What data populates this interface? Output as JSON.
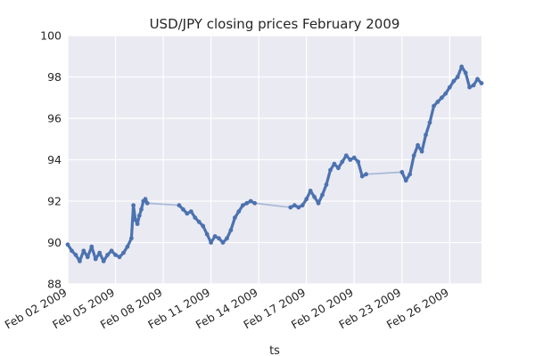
{
  "chart_data": {
    "type": "line",
    "title": "USD/JPY closing prices February 2009",
    "xlabel": "ts",
    "ylabel": "",
    "ylim": [
      88,
      100
    ],
    "yticks": [
      88,
      90,
      92,
      94,
      96,
      98,
      100
    ],
    "xlim": [
      "2009-02-02",
      "2009-02-28"
    ],
    "xticks": [
      "Feb 02 2009",
      "Feb 05 2009",
      "Feb 08 2009",
      "Feb 11 2009",
      "Feb 14 2009",
      "Feb 17 2009",
      "Feb 20 2009",
      "Feb 23 2009",
      "Feb 26 2009"
    ],
    "grid": true,
    "series": [
      {
        "color": "#4c72b0",
        "points": [
          [
            "2009-02-02T00:00",
            89.9
          ],
          [
            "2009-02-02T06:00",
            89.6
          ],
          [
            "2009-02-02T12:00",
            89.4
          ],
          [
            "2009-02-02T18:00",
            89.1
          ],
          [
            "2009-02-03T00:00",
            89.6
          ],
          [
            "2009-02-03T06:00",
            89.3
          ],
          [
            "2009-02-03T12:00",
            89.8
          ],
          [
            "2009-02-03T18:00",
            89.2
          ],
          [
            "2009-02-04T00:00",
            89.5
          ],
          [
            "2009-02-04T06:00",
            89.1
          ],
          [
            "2009-02-04T12:00",
            89.4
          ],
          [
            "2009-02-04T18:00",
            89.6
          ],
          [
            "2009-02-05T00:00",
            89.4
          ],
          [
            "2009-02-05T06:00",
            89.3
          ],
          [
            "2009-02-05T12:00",
            89.5
          ],
          [
            "2009-02-05T18:00",
            89.8
          ],
          [
            "2009-02-06T00:00",
            90.2
          ],
          [
            "2009-02-06T03:00",
            91.8
          ],
          [
            "2009-02-06T06:00",
            91.1
          ],
          [
            "2009-02-06T09:00",
            90.9
          ],
          [
            "2009-02-06T12:00",
            91.3
          ],
          [
            "2009-02-06T15:00",
            91.6
          ],
          [
            "2009-02-06T18:00",
            92.0
          ],
          [
            "2009-02-06T21:00",
            92.1
          ],
          [
            "2009-02-07T00:00",
            91.9
          ],
          [
            "2009-02-09T00:00",
            91.8
          ],
          [
            "2009-02-09T06:00",
            91.6
          ],
          [
            "2009-02-09T12:00",
            91.4
          ],
          [
            "2009-02-09T18:00",
            91.5
          ],
          [
            "2009-02-10T00:00",
            91.2
          ],
          [
            "2009-02-10T06:00",
            91.0
          ],
          [
            "2009-02-10T12:00",
            90.8
          ],
          [
            "2009-02-10T18:00",
            90.4
          ],
          [
            "2009-02-11T00:00",
            90.0
          ],
          [
            "2009-02-11T06:00",
            90.3
          ],
          [
            "2009-02-11T12:00",
            90.2
          ],
          [
            "2009-02-11T18:00",
            90.0
          ],
          [
            "2009-02-12T00:00",
            90.2
          ],
          [
            "2009-02-12T06:00",
            90.6
          ],
          [
            "2009-02-12T12:00",
            91.2
          ],
          [
            "2009-02-12T18:00",
            91.5
          ],
          [
            "2009-02-13T00:00",
            91.8
          ],
          [
            "2009-02-13T06:00",
            91.9
          ],
          [
            "2009-02-13T12:00",
            92.0
          ],
          [
            "2009-02-13T18:00",
            91.9
          ],
          [
            "2009-02-16T00:00",
            91.7
          ],
          [
            "2009-02-16T06:00",
            91.8
          ],
          [
            "2009-02-16T12:00",
            91.7
          ],
          [
            "2009-02-16T18:00",
            91.8
          ],
          [
            "2009-02-17T00:00",
            92.1
          ],
          [
            "2009-02-17T06:00",
            92.5
          ],
          [
            "2009-02-17T12:00",
            92.2
          ],
          [
            "2009-02-17T18:00",
            91.9
          ],
          [
            "2009-02-18T00:00",
            92.3
          ],
          [
            "2009-02-18T06:00",
            92.8
          ],
          [
            "2009-02-18T12:00",
            93.5
          ],
          [
            "2009-02-18T18:00",
            93.8
          ],
          [
            "2009-02-19T00:00",
            93.6
          ],
          [
            "2009-02-19T06:00",
            93.9
          ],
          [
            "2009-02-19T12:00",
            94.2
          ],
          [
            "2009-02-19T18:00",
            94.0
          ],
          [
            "2009-02-20T00:00",
            94.1
          ],
          [
            "2009-02-20T06:00",
            93.9
          ],
          [
            "2009-02-20T12:00",
            93.2
          ],
          [
            "2009-02-20T18:00",
            93.3
          ],
          [
            "2009-02-23T00:00",
            93.4
          ],
          [
            "2009-02-23T06:00",
            93.0
          ],
          [
            "2009-02-23T12:00",
            93.3
          ],
          [
            "2009-02-23T18:00",
            94.2
          ],
          [
            "2009-02-24T00:00",
            94.7
          ],
          [
            "2009-02-24T06:00",
            94.4
          ],
          [
            "2009-02-24T12:00",
            95.2
          ],
          [
            "2009-02-24T18:00",
            95.8
          ],
          [
            "2009-02-25T00:00",
            96.6
          ],
          [
            "2009-02-25T06:00",
            96.8
          ],
          [
            "2009-02-25T12:00",
            97.0
          ],
          [
            "2009-02-25T18:00",
            97.2
          ],
          [
            "2009-02-26T00:00",
            97.5
          ],
          [
            "2009-02-26T06:00",
            97.8
          ],
          [
            "2009-02-26T12:00",
            98.0
          ],
          [
            "2009-02-26T18:00",
            98.5
          ],
          [
            "2009-02-27T00:00",
            98.2
          ],
          [
            "2009-02-27T06:00",
            97.5
          ],
          [
            "2009-02-27T12:00",
            97.6
          ],
          [
            "2009-02-27T18:00",
            97.9
          ],
          [
            "2009-02-28T00:00",
            97.7
          ]
        ]
      }
    ]
  }
}
